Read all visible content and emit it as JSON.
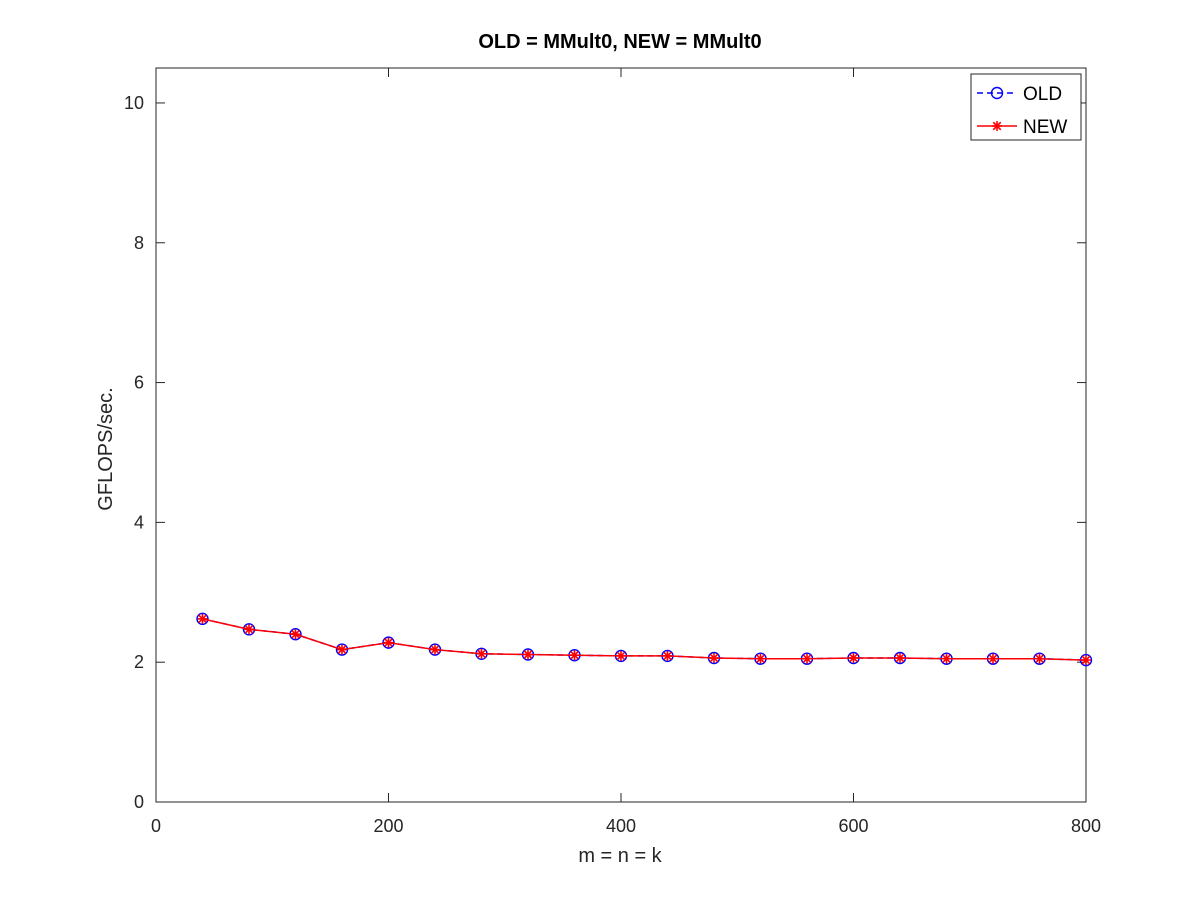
{
  "chart_data": {
    "type": "line",
    "title": "OLD = MMult0, NEW = MMult0",
    "xlabel": "m = n = k",
    "ylabel": "GFLOPS/sec.",
    "xlim": [
      0,
      800
    ],
    "ylim": [
      0,
      10.5
    ],
    "x_ticks": [
      0,
      200,
      400,
      600,
      800
    ],
    "y_ticks": [
      0,
      2,
      4,
      6,
      8,
      10
    ],
    "grid": false,
    "legend_position": "top-right",
    "x": [
      40,
      80,
      120,
      160,
      200,
      240,
      280,
      320,
      360,
      400,
      440,
      480,
      520,
      560,
      600,
      640,
      680,
      720,
      760,
      800
    ],
    "series": [
      {
        "name": "OLD",
        "color": "#0000ff",
        "line_style": "dashed",
        "marker": "circle",
        "values": [
          2.62,
          2.47,
          2.4,
          2.18,
          2.28,
          2.18,
          2.12,
          2.11,
          2.1,
          2.09,
          2.09,
          2.06,
          2.05,
          2.05,
          2.06,
          2.06,
          2.05,
          2.05,
          2.05,
          2.03
        ]
      },
      {
        "name": "NEW",
        "color": "#ff0000",
        "line_style": "solid",
        "marker": "asterisk",
        "values": [
          2.62,
          2.47,
          2.4,
          2.18,
          2.28,
          2.18,
          2.12,
          2.11,
          2.1,
          2.09,
          2.09,
          2.06,
          2.05,
          2.05,
          2.06,
          2.06,
          2.05,
          2.05,
          2.05,
          2.03
        ]
      }
    ]
  }
}
